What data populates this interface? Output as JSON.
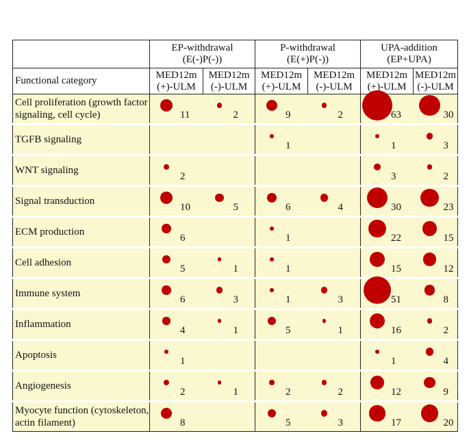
{
  "table": {
    "corner": "Functional category",
    "groups": [
      {
        "name": "EP-withdrawal",
        "condition": "(E(-)P(-))"
      },
      {
        "name": "P-withdrawal",
        "condition": "(E(+)P(-))"
      },
      {
        "name": "UPA-addition",
        "condition": "(EP+UPA)"
      }
    ],
    "subheaders": [
      "MED12m (+)-ULM",
      "MED12m (-)-ULM",
      "MED12m (+)-ULM",
      "MED12m (-)-ULM",
      "MED12m (+)-ULM",
      "MED12m (-)-ULM"
    ],
    "bubble_color": "#c00000",
    "rows": [
      {
        "label": "Cell proliferation (growth factor signaling, cell cycle)",
        "values": [
          11,
          2,
          9,
          2,
          63,
          30
        ]
      },
      {
        "label": "TGFB signaling",
        "values": [
          null,
          null,
          1,
          null,
          1,
          3
        ]
      },
      {
        "label": "WNT signaling",
        "values": [
          2,
          null,
          null,
          null,
          3,
          2
        ]
      },
      {
        "label": "Signal transduction",
        "values": [
          10,
          5,
          6,
          4,
          30,
          23
        ]
      },
      {
        "label": "ECM production",
        "values": [
          6,
          null,
          1,
          null,
          22,
          15
        ]
      },
      {
        "label": "Cell adhesion",
        "values": [
          5,
          1,
          1,
          null,
          15,
          12
        ]
      },
      {
        "label": "Immune system",
        "values": [
          6,
          3,
          1,
          3,
          51,
          8
        ]
      },
      {
        "label": "Inflammation",
        "values": [
          4,
          1,
          5,
          1,
          16,
          2
        ]
      },
      {
        "label": "Apoptosis",
        "values": [
          1,
          null,
          null,
          null,
          1,
          4
        ]
      },
      {
        "label": "Angiogenesis",
        "values": [
          2,
          1,
          2,
          2,
          12,
          9
        ]
      },
      {
        "label": "Myocyte function (cytoskeleton, actin filament)",
        "values": [
          8,
          null,
          5,
          3,
          17,
          20
        ]
      }
    ]
  }
}
